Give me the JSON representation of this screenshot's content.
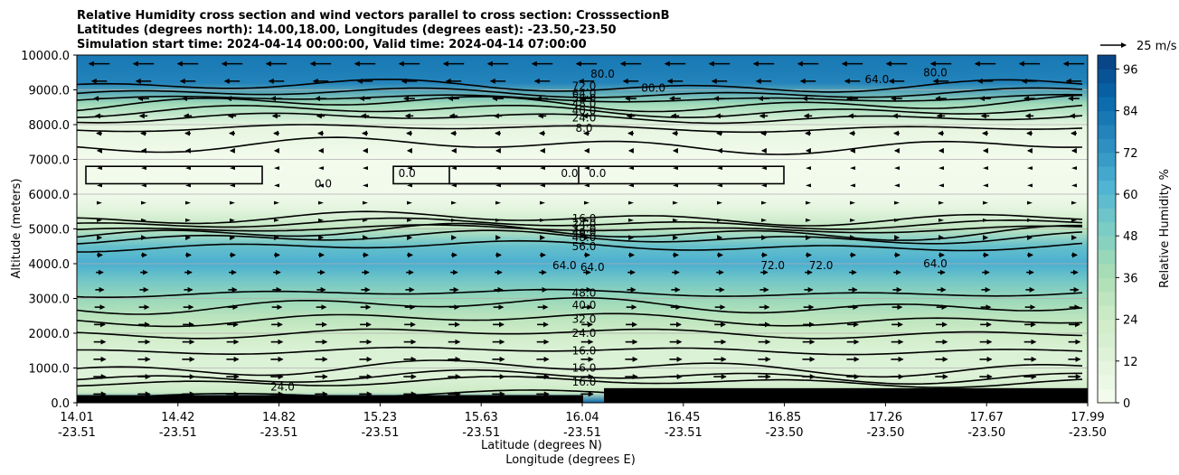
{
  "chart_data": {
    "type": "heatmap",
    "title": [
      "Relative Humidity cross section and wind vectors parallel to cross section: CrosssectionB",
      "Latitudes (degrees north): 14.00,18.00, Longitudes (degrees east): -23.50,-23.50",
      "Simulation start time: 2024-04-14 00:00:00, Valid time: 2024-04-14 07:00:00"
    ],
    "ylabel": "Altitude (meters)",
    "xlabel_line1": "Latitude (degrees N)",
    "xlabel_line2": "Longitude (degrees E)",
    "ylim": [
      0,
      10000
    ],
    "y_ticks": [
      "0.0",
      "1000.0",
      "2000.0",
      "3000.0",
      "4000.0",
      "5000.0",
      "6000.0",
      "7000.0",
      "8000.0",
      "9000.0",
      "10000.0"
    ],
    "y_tick_values": [
      0,
      1000,
      2000,
      3000,
      4000,
      5000,
      6000,
      7000,
      8000,
      9000,
      10000
    ],
    "grid": true,
    "x_ticks": [
      {
        "lat": "14.01",
        "lon": "-23.51"
      },
      {
        "lat": "14.42",
        "lon": "-23.51"
      },
      {
        "lat": "14.82",
        "lon": "-23.51"
      },
      {
        "lat": "15.23",
        "lon": "-23.51"
      },
      {
        "lat": "15.63",
        "lon": "-23.51"
      },
      {
        "lat": "16.04",
        "lon": "-23.51"
      },
      {
        "lat": "16.45",
        "lon": "-23.51"
      },
      {
        "lat": "16.85",
        "lon": "-23.50"
      },
      {
        "lat": "17.26",
        "lon": "-23.50"
      },
      {
        "lat": "17.67",
        "lon": "-23.50"
      },
      {
        "lat": "17.99",
        "lon": "-23.50"
      }
    ],
    "colorbar": {
      "label": "Relative Humidity %",
      "range": [
        0,
        100
      ],
      "ticks": [
        "0",
        "12",
        "24",
        "36",
        "48",
        "60",
        "72",
        "84",
        "96"
      ],
      "tick_values": [
        0,
        12,
        24,
        36,
        48,
        60,
        72,
        84,
        96
      ],
      "colors": [
        "#f7fcf0",
        "#e0f3db",
        "#ccebc5",
        "#a8ddb5",
        "#7bccc4",
        "#4eb3d3",
        "#2b8cbe",
        "#0868ac",
        "#084081"
      ]
    },
    "rh_profile": [
      {
        "altitude": 0,
        "rh": 88
      },
      {
        "altitude": 300,
        "rh": 25
      },
      {
        "altitude": 800,
        "rh": 14
      },
      {
        "altitude": 1500,
        "rh": 16
      },
      {
        "altitude": 2000,
        "rh": 24
      },
      {
        "altitude": 2500,
        "rh": 32
      },
      {
        "altitude": 3000,
        "rh": 42
      },
      {
        "altitude": 3500,
        "rh": 52
      },
      {
        "altitude": 4000,
        "rh": 64
      },
      {
        "altitude": 4500,
        "rh": 56
      },
      {
        "altitude": 5000,
        "rh": 30
      },
      {
        "altitude": 5500,
        "rh": 12
      },
      {
        "altitude": 6000,
        "rh": 3
      },
      {
        "altitude": 7000,
        "rh": 2
      },
      {
        "altitude": 8000,
        "rh": 10
      },
      {
        "altitude": 8600,
        "rh": 40
      },
      {
        "altitude": 9200,
        "rh": 78
      },
      {
        "altitude": 10000,
        "rh": 82
      }
    ],
    "contour_levels": [
      {
        "altitude": 250,
        "label": ""
      },
      {
        "altitude": 600,
        "label": "16.0"
      },
      {
        "altitude": 750,
        "label": ""
      },
      {
        "altitude": 1000,
        "label": "16.0"
      },
      {
        "altitude": 1500,
        "label": "16.0"
      },
      {
        "altitude": 2000,
        "label": "24.0"
      },
      {
        "altitude": 2400,
        "label": "32.0"
      },
      {
        "altitude": 2800,
        "label": "40.0"
      },
      {
        "altitude": 3150,
        "label": "48.0"
      },
      {
        "altitude": 4500,
        "label": "56.0"
      },
      {
        "altitude": 4750,
        "label": "48.0"
      },
      {
        "altitude": 4900,
        "label": "40.0"
      },
      {
        "altitude": 5000,
        "label": "32.0"
      },
      {
        "altitude": 5150,
        "label": "24.0"
      },
      {
        "altitude": 5300,
        "label": "16.0"
      },
      {
        "altitude": 7400,
        "label": ""
      },
      {
        "altitude": 7900,
        "label": "8.0"
      },
      {
        "altitude": 8200,
        "label": "24.0"
      },
      {
        "altitude": 8400,
        "label": "40.0"
      },
      {
        "altitude": 8600,
        "label": "48.0"
      },
      {
        "altitude": 8750,
        "label": "56.0"
      },
      {
        "altitude": 8900,
        "label": "64.0"
      },
      {
        "altitude": 9100,
        "label": "72.0"
      }
    ],
    "extra_contour_labels": [
      {
        "text": "64.0",
        "lat": 15.93,
        "altitude": 3950
      },
      {
        "text": "64.0",
        "lat": 16.04,
        "altitude": 3900
      },
      {
        "text": "72.0",
        "lat": 16.75,
        "altitude": 3950
      },
      {
        "text": "72.0",
        "lat": 16.94,
        "altitude": 3950
      },
      {
        "text": "64.0",
        "lat": 17.39,
        "altitude": 4000
      },
      {
        "text": "64.0",
        "lat": 17.16,
        "altitude": 9300
      },
      {
        "text": "80.0",
        "lat": 16.28,
        "altitude": 9050
      },
      {
        "text": "80.0",
        "lat": 16.08,
        "altitude": 9450
      },
      {
        "text": "80.0",
        "lat": 17.39,
        "altitude": 9500
      },
      {
        "text": "0.0",
        "lat": 15.31,
        "altitude": 6600
      },
      {
        "text": "0.0",
        "lat": 15.95,
        "altitude": 6600
      },
      {
        "text": "0.0",
        "lat": 16.06,
        "altitude": 6600
      },
      {
        "text": "0.0",
        "lat": 14.98,
        "altitude": 6300
      },
      {
        "text": "24.0",
        "lat": 14.82,
        "altitude": 450
      }
    ],
    "wind_u_profile": [
      {
        "altitude": 250,
        "u": 12
      },
      {
        "altitude": 1000,
        "u": 12
      },
      {
        "altitude": 2000,
        "u": 11
      },
      {
        "altitude": 3000,
        "u": 9
      },
      {
        "altitude": 4000,
        "u": 6
      },
      {
        "altitude": 5000,
        "u": 3
      },
      {
        "altitude": 6000,
        "u": -1
      },
      {
        "altitude": 7000,
        "u": -3
      },
      {
        "altitude": 8000,
        "u": -6
      },
      {
        "altitude": 9000,
        "u": -12
      },
      {
        "altitude": 9750,
        "u": -20
      }
    ],
    "quiver_key": "25 m/s"
  }
}
